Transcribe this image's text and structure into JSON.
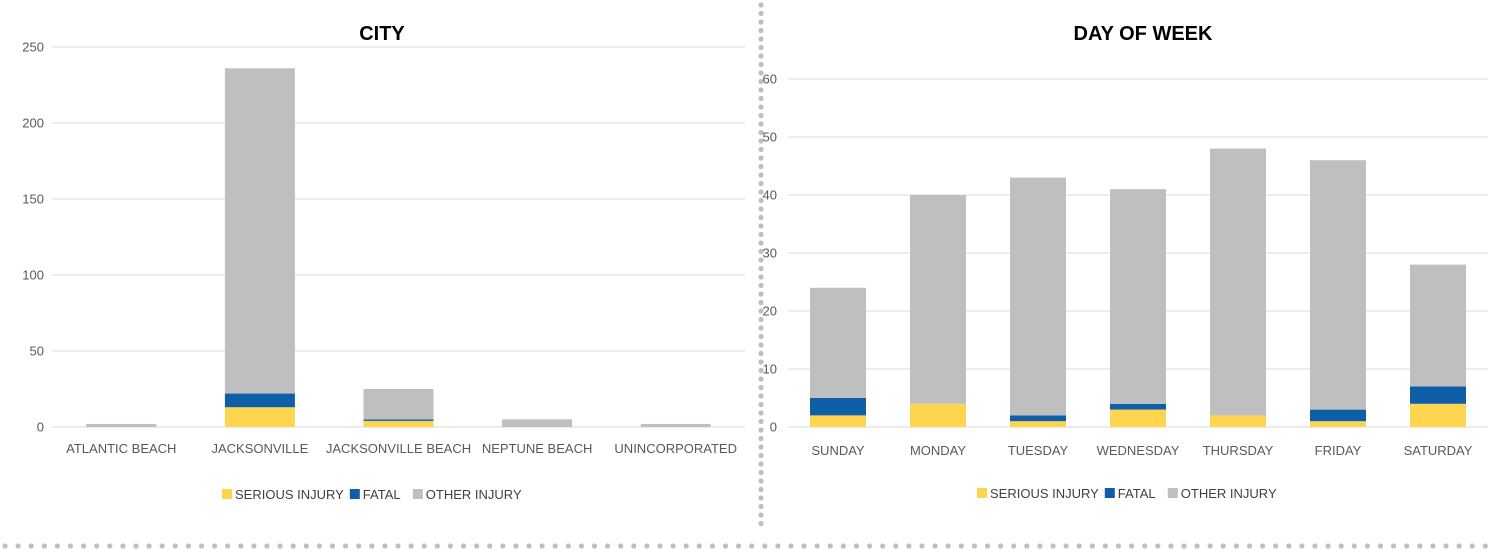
{
  "chart_data": [
    {
      "type": "bar",
      "stacked": true,
      "title": "CITY",
      "xlabel": "",
      "ylabel": "",
      "ylim": [
        0,
        250
      ],
      "yticks": [
        0,
        50,
        100,
        150,
        200,
        250
      ],
      "grid": true,
      "legend_position": "bottom",
      "categories": [
        "ATLANTIC BEACH",
        "JACKSONVILLE",
        "JACKSONVILLE BEACH",
        "NEPTUNE BEACH",
        "UNINCORPORATED"
      ],
      "series": [
        {
          "name": "SERIOUS INJURY",
          "color": "#FFD54F",
          "values": [
            0,
            13,
            4,
            0,
            0
          ]
        },
        {
          "name": "FATAL",
          "color": "#0E5FA8",
          "values": [
            0,
            9,
            1,
            0,
            0
          ]
        },
        {
          "name": "OTHER INJURY",
          "color": "#BFBFBF",
          "values": [
            2,
            214,
            20,
            5,
            2
          ]
        }
      ]
    },
    {
      "type": "bar",
      "stacked": true,
      "title": "DAY OF WEEK",
      "xlabel": "",
      "ylabel": "",
      "ylim": [
        0,
        60
      ],
      "yticks": [
        0,
        10,
        20,
        30,
        40,
        50,
        60
      ],
      "grid": true,
      "legend_position": "bottom",
      "categories": [
        "SUNDAY",
        "MONDAY",
        "TUESDAY",
        "WEDNESDAY",
        "THURSDAY",
        "FRIDAY",
        "SATURDAY"
      ],
      "series": [
        {
          "name": "SERIOUS INJURY",
          "color": "#FFD54F",
          "values": [
            2,
            4,
            1,
            3,
            2,
            1,
            4
          ]
        },
        {
          "name": "FATAL",
          "color": "#0E5FA8",
          "values": [
            3,
            0,
            1,
            1,
            0,
            2,
            3
          ]
        },
        {
          "name": "OTHER INJURY",
          "color": "#BFBFBF",
          "values": [
            19,
            36,
            41,
            37,
            46,
            43,
            21
          ]
        }
      ]
    }
  ]
}
